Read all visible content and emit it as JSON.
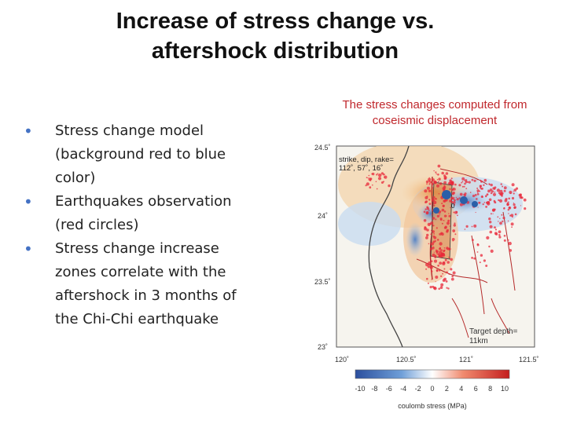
{
  "slide": {
    "title_line1": "Increase of stress change vs.",
    "title_line2": "aftershock distribution",
    "bullets": [
      "Stress change model (background red to blue color)",
      "Earthquakes observation (red circles)",
      "Stress change increase zones correlate with the aftershock in 3 months of the Chi-Chi earthquake"
    ]
  },
  "figure": {
    "caption_line1": "The stress changes computed from",
    "caption_line2": "coseismic displacement",
    "map": {
      "lat_labels": [
        "24.5˚",
        "24˚",
        "23.5˚",
        "23˚"
      ],
      "lon_labels": [
        "120˚",
        "120.5˚",
        "121˚",
        "121.5˚"
      ],
      "fault_params_line1": "strike, dip, rake=",
      "fault_params_line2": "112˚, 57˚, 16˚",
      "target_depth_line1": "Target depth=",
      "target_depth_line2": "11km",
      "marker_label": "0"
    },
    "colorbar": {
      "ticks": [
        "-10",
        "-8",
        "-6",
        "-4",
        "-2",
        "0",
        "2",
        "4",
        "6",
        "8",
        "10"
      ],
      "label": "coulomb stress (MPa)",
      "colors": [
        "#2b4f9e",
        "#5b8fd0",
        "#a9c8ea",
        "#ffffff",
        "#f7b4a0",
        "#e8553c",
        "#c41e1e"
      ]
    }
  }
}
